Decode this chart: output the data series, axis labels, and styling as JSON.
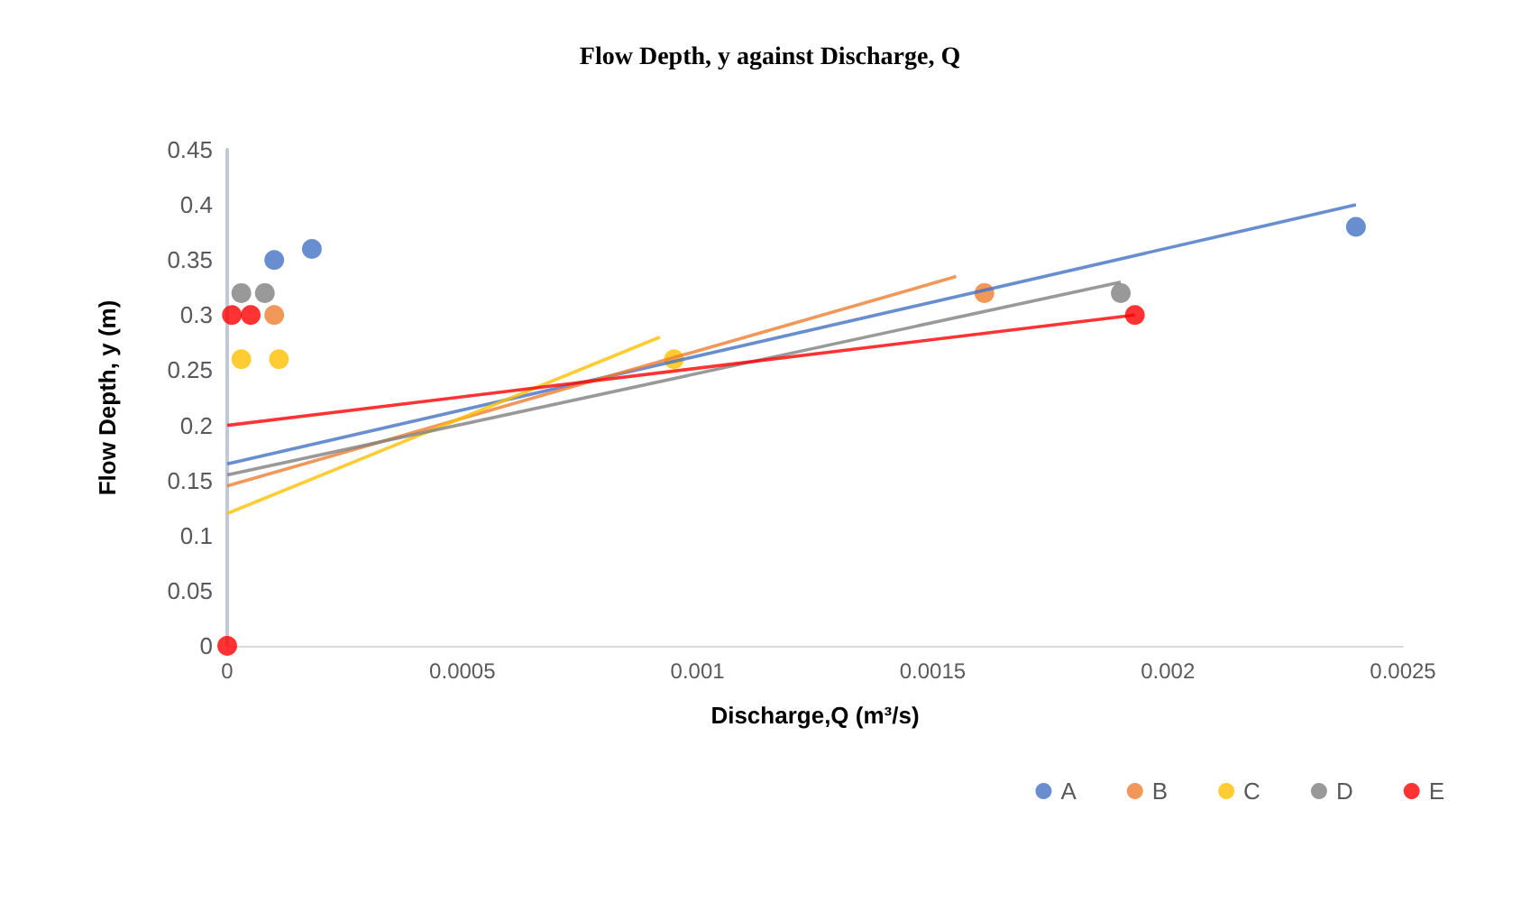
{
  "chart_data": {
    "type": "scatter",
    "title": "Flow Depth, y against Discharge, Q",
    "xlabel": "Discharge,Q (m³/s)",
    "ylabel": "Flow Depth, y (m)",
    "xlim": [
      0,
      0.0025
    ],
    "xticks": [
      0,
      0.0005,
      0.001,
      0.0015,
      0.002,
      0.0025
    ],
    "ylim": [
      0,
      0.45
    ],
    "yticks": [
      0,
      0.05,
      0.1,
      0.15,
      0.2,
      0.25,
      0.3,
      0.35,
      0.4,
      0.45
    ],
    "grid": false,
    "legend": "bottom right",
    "series": [
      {
        "name": "A",
        "marker": "circle",
        "color": "#4472c4",
        "x": [
          0.0001,
          0.00018,
          0.0024
        ],
        "values": [
          0.35,
          0.36,
          0.38
        ]
      },
      {
        "name": "B",
        "marker": "circle",
        "color": "#ed7d31",
        "x": [
          0.0001,
          0.00161
        ],
        "values": [
          0.3,
          0.32
        ]
      },
      {
        "name": "C",
        "marker": "circle",
        "color": "#ffc000",
        "x": [
          3e-05,
          0.00011,
          0.00095
        ],
        "values": [
          0.26,
          0.26,
          0.26
        ]
      },
      {
        "name": "D",
        "marker": "circle",
        "color": "#7f7f7f",
        "x": [
          3e-05,
          8e-05,
          0.0019
        ],
        "values": [
          0.32,
          0.32,
          0.32
        ]
      },
      {
        "name": "E",
        "marker": "circle",
        "color": "#ff0000",
        "x": [
          0,
          1e-05,
          5e-05,
          0.00193
        ],
        "values": [
          0,
          0.3,
          0.3,
          0.3
        ]
      },
      {
        "type": "line",
        "marker": "none",
        "color": "#4472c4",
        "x": [
          0,
          0.0024
        ],
        "values": [
          0.165,
          0.4
        ]
      },
      {
        "type": "line",
        "marker": "none",
        "color": "#ed7d31",
        "x": [
          0,
          0.00155
        ],
        "values": [
          0.145,
          0.335
        ]
      },
      {
        "type": "line",
        "marker": "none",
        "color": "#ffc000",
        "x": [
          0,
          0.00092
        ],
        "values": [
          0.12,
          0.28
        ]
      },
      {
        "type": "line",
        "marker": "none",
        "color": "#7f7f7f",
        "x": [
          0,
          0.0019
        ],
        "values": [
          0.155,
          0.33
        ]
      },
      {
        "type": "line",
        "marker": "none",
        "color": "#ff0000",
        "x": [
          0,
          0.00193
        ],
        "values": [
          0.2,
          0.3
        ]
      }
    ]
  }
}
